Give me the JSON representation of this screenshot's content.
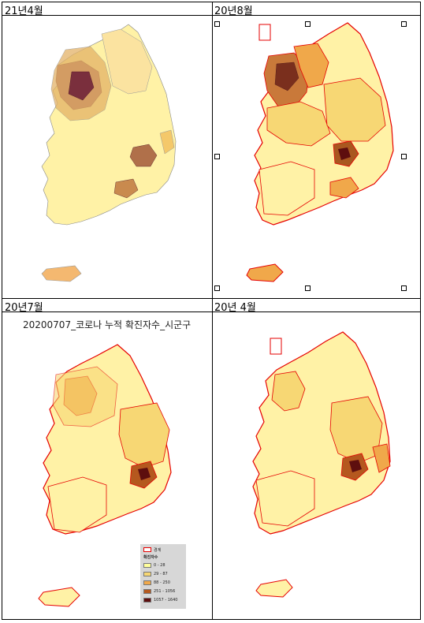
{
  "panels": [
    {
      "label": "21년4월"
    },
    {
      "label": "20년8월"
    },
    {
      "label": "20년7월",
      "map_title": "20200707_코로나 누적 확진자수_시군구"
    },
    {
      "label": "20년 4월"
    }
  ],
  "legend": {
    "boundary_label": "경계",
    "title": "확진자수",
    "classes": [
      {
        "range": "0 - 28",
        "color": "#ffff9b"
      },
      {
        "range": "29 - 87",
        "color": "#f7d774"
      },
      {
        "range": "88 - 250",
        "color": "#f0a84a"
      },
      {
        "range": "251 - 1056",
        "color": "#b5581e"
      },
      {
        "range": "1057 - 1640",
        "color": "#5e0e0e"
      }
    ]
  },
  "colors": {
    "base": "#fff2a6",
    "mid": "#f4c86a",
    "high": "#e69a3c",
    "very_high": "#a9571f",
    "max": "#6b1a1a",
    "boundary": "#e60000"
  }
}
